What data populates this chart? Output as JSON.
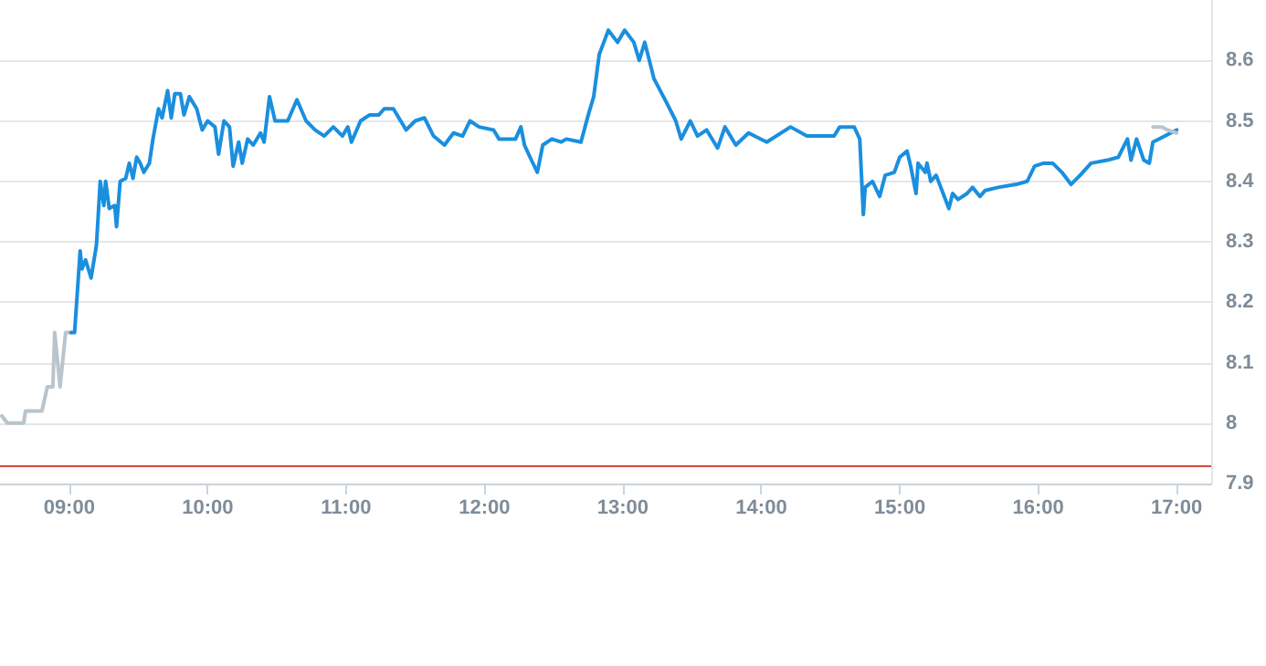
{
  "chart_data": {
    "type": "line",
    "marker": "none",
    "line_style": "solid",
    "grid": "y",
    "xlim": [
      8.5,
      17.25
    ],
    "xticks": [
      {
        "value": 9,
        "label": "09:00"
      },
      {
        "value": 10,
        "label": "10:00"
      },
      {
        "value": 11,
        "label": "11:00"
      },
      {
        "value": 12,
        "label": "12:00"
      },
      {
        "value": 13,
        "label": "13:00"
      },
      {
        "value": 14,
        "label": "14:00"
      },
      {
        "value": 15,
        "label": "15:00"
      },
      {
        "value": 16,
        "label": "16:00"
      },
      {
        "value": 17,
        "label": "17:00"
      }
    ],
    "ylim": [
      7.9,
      8.7
    ],
    "yticks": [
      7.9,
      8,
      8.1,
      8.2,
      8.3,
      8.4,
      8.5,
      8.6
    ],
    "ref_lines": [
      {
        "axis": "y",
        "value": 7.93,
        "color": "#d9453f"
      }
    ],
    "series": [
      {
        "color": "#b9c4cc",
        "x": [
          8.513,
          8.553,
          8.671,
          8.684,
          8.803,
          8.842,
          8.882,
          8.895,
          8.934,
          8.974,
          9.013
        ],
        "values": [
          8.012,
          8.0,
          8.0,
          8.02,
          8.02,
          8.06,
          8.06,
          8.15,
          8.06,
          8.15,
          8.15
        ]
      },
      {
        "color": "#1a8fdf",
        "x": [
          9.013,
          9.039,
          9.079,
          9.092,
          9.118,
          9.158,
          9.197,
          9.224,
          9.25,
          9.263,
          9.289,
          9.329,
          9.342,
          9.368,
          9.408,
          9.434,
          9.461,
          9.487,
          9.513,
          9.539,
          9.579,
          9.605,
          9.645,
          9.671,
          9.711,
          9.737,
          9.763,
          9.803,
          9.829,
          9.868,
          9.921,
          9.961,
          10.0,
          10.053,
          10.079,
          10.118,
          10.158,
          10.184,
          10.224,
          10.25,
          10.289,
          10.329,
          10.382,
          10.408,
          10.447,
          10.487,
          10.579,
          10.645,
          10.711,
          10.776,
          10.842,
          10.908,
          10.974,
          11.013,
          11.039,
          11.105,
          11.171,
          11.237,
          11.276,
          11.342,
          11.434,
          11.5,
          11.566,
          11.632,
          11.711,
          11.776,
          11.842,
          11.895,
          11.961,
          12.066,
          12.105,
          12.224,
          12.263,
          12.289,
          12.329,
          12.382,
          12.421,
          12.487,
          12.553,
          12.592,
          12.697,
          12.75,
          12.789,
          12.829,
          12.895,
          12.961,
          13.013,
          13.079,
          13.118,
          13.158,
          13.224,
          13.316,
          13.382,
          13.421,
          13.487,
          13.539,
          13.605,
          13.684,
          13.737,
          13.816,
          13.908,
          14.039,
          14.211,
          14.329,
          14.526,
          14.566,
          14.671,
          14.711,
          14.737,
          14.75,
          14.803,
          14.855,
          14.895,
          14.961,
          15.0,
          15.053,
          15.079,
          15.118,
          15.132,
          15.184,
          15.197,
          15.224,
          15.263,
          15.355,
          15.382,
          15.421,
          15.487,
          15.526,
          15.579,
          15.618,
          15.711,
          15.842,
          15.921,
          15.974,
          16.039,
          16.105,
          16.171,
          16.237,
          16.303,
          16.382,
          16.5,
          16.579,
          16.645,
          16.671,
          16.711,
          16.763,
          16.803,
          16.829,
          17.0
        ],
        "values": [
          8.15,
          8.15,
          8.285,
          8.255,
          8.27,
          8.24,
          8.295,
          8.4,
          8.36,
          8.4,
          8.355,
          8.36,
          8.325,
          8.4,
          8.405,
          8.43,
          8.405,
          8.44,
          8.43,
          8.415,
          8.43,
          8.47,
          8.52,
          8.505,
          8.55,
          8.505,
          8.545,
          8.545,
          8.51,
          8.54,
          8.52,
          8.485,
          8.5,
          8.49,
          8.445,
          8.5,
          8.49,
          8.425,
          8.465,
          8.43,
          8.47,
          8.46,
          8.48,
          8.465,
          8.54,
          8.5,
          8.5,
          8.535,
          8.5,
          8.485,
          8.475,
          8.49,
          8.475,
          8.49,
          8.465,
          8.5,
          8.51,
          8.51,
          8.52,
          8.52,
          8.485,
          8.5,
          8.505,
          8.475,
          8.46,
          8.48,
          8.475,
          8.5,
          8.49,
          8.485,
          8.47,
          8.47,
          8.49,
          8.46,
          8.44,
          8.415,
          8.46,
          8.47,
          8.465,
          8.47,
          8.465,
          8.51,
          8.54,
          8.61,
          8.65,
          8.63,
          8.65,
          8.63,
          8.6,
          8.63,
          8.57,
          8.53,
          8.5,
          8.47,
          8.5,
          8.475,
          8.485,
          8.455,
          8.49,
          8.46,
          8.48,
          8.465,
          8.49,
          8.475,
          8.475,
          8.49,
          8.49,
          8.47,
          8.345,
          8.39,
          8.4,
          8.375,
          8.41,
          8.415,
          8.44,
          8.45,
          8.425,
          8.38,
          8.43,
          8.415,
          8.43,
          8.4,
          8.41,
          8.355,
          8.38,
          8.37,
          8.38,
          8.39,
          8.375,
          8.385,
          8.39,
          8.395,
          8.4,
          8.425,
          8.43,
          8.43,
          8.415,
          8.395,
          8.41,
          8.43,
          8.435,
          8.44,
          8.47,
          8.435,
          8.47,
          8.435,
          8.43,
          8.465,
          8.485
        ]
      },
      {
        "color": "#b9c4cc",
        "x": [
          16.829,
          16.895,
          16.934,
          17.0
        ],
        "values": [
          8.49,
          8.49,
          8.485,
          8.48
        ]
      }
    ]
  }
}
